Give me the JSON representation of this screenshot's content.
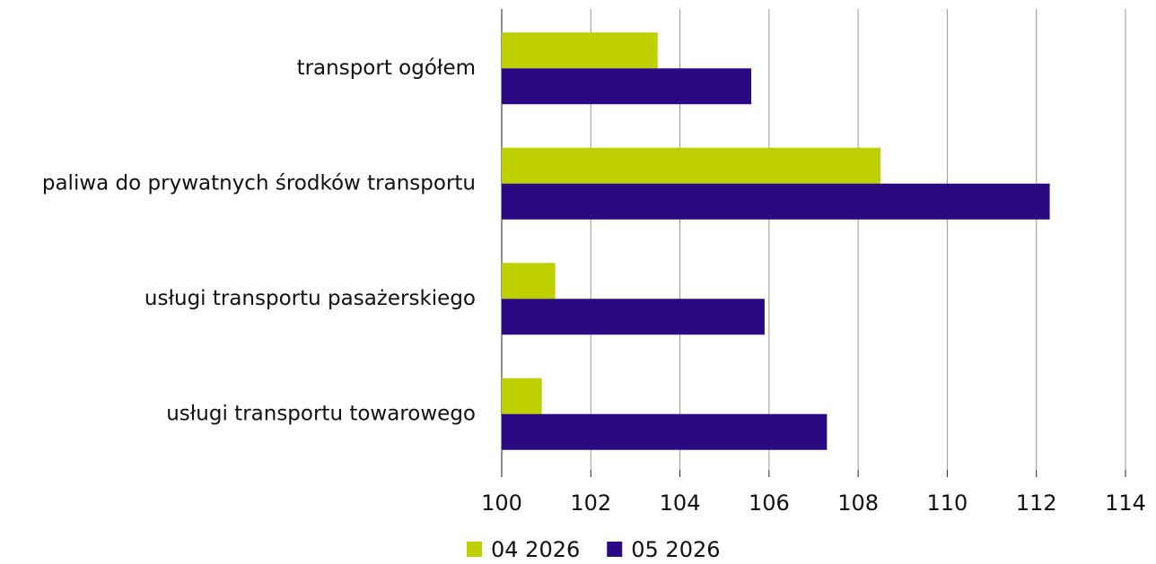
{
  "chart_data": {
    "type": "bar",
    "orientation": "horizontal",
    "categories": [
      "transport ogółem",
      "paliwa do prywatnych środków transportu",
      "usługi transportu pasażerskiego",
      "usługi transportu towarowego"
    ],
    "series": [
      {
        "name": "04 2026",
        "color": "#bfd000",
        "values": [
          103.5,
          108.5,
          101.2,
          100.9
        ]
      },
      {
        "name": "05 2026",
        "color": "#2a0a82",
        "values": [
          105.6,
          112.3,
          105.9,
          107.3
        ]
      }
    ],
    "xlim": [
      100,
      114
    ],
    "xticks": [
      100,
      102,
      104,
      106,
      108,
      110,
      112,
      114
    ],
    "grid": true,
    "legend": "bottom"
  }
}
